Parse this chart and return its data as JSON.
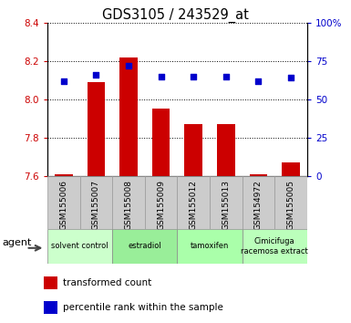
{
  "title": "GDS3105 / 243529_at",
  "samples": [
    "GSM155006",
    "GSM155007",
    "GSM155008",
    "GSM155009",
    "GSM155012",
    "GSM155013",
    "GSM154972",
    "GSM155005"
  ],
  "bar_values": [
    7.61,
    8.09,
    8.22,
    7.95,
    7.87,
    7.87,
    7.61,
    7.67
  ],
  "percentile_values": [
    62,
    66,
    72,
    65,
    65,
    65,
    62,
    64
  ],
  "ylim_left": [
    7.6,
    8.4
  ],
  "ylim_right": [
    0,
    100
  ],
  "yticks_left": [
    7.6,
    7.8,
    8.0,
    8.2,
    8.4
  ],
  "yticks_right": [
    0,
    25,
    50,
    75,
    100
  ],
  "bar_color": "#cc0000",
  "scatter_color": "#0000cc",
  "bar_bottom": 7.6,
  "groups": [
    {
      "label": "solvent control",
      "spans": [
        0,
        1
      ],
      "color": "#ccffcc"
    },
    {
      "label": "estradiol",
      "spans": [
        2,
        3
      ],
      "color": "#99ee99"
    },
    {
      "label": "tamoxifen",
      "spans": [
        4,
        5
      ],
      "color": "#aaffaa"
    },
    {
      "label": "Cimicifuga\nracemosa extract",
      "spans": [
        6,
        7
      ],
      "color": "#bbffbb"
    }
  ],
  "tick_label_color_left": "#cc0000",
  "tick_label_color_right": "#0000cc",
  "legend_items": [
    {
      "color": "#cc0000",
      "label": "transformed count"
    },
    {
      "color": "#0000cc",
      "label": "percentile rank within the sample"
    }
  ],
  "sample_box_color": "#cccccc",
  "sample_box_edge": "#999999"
}
